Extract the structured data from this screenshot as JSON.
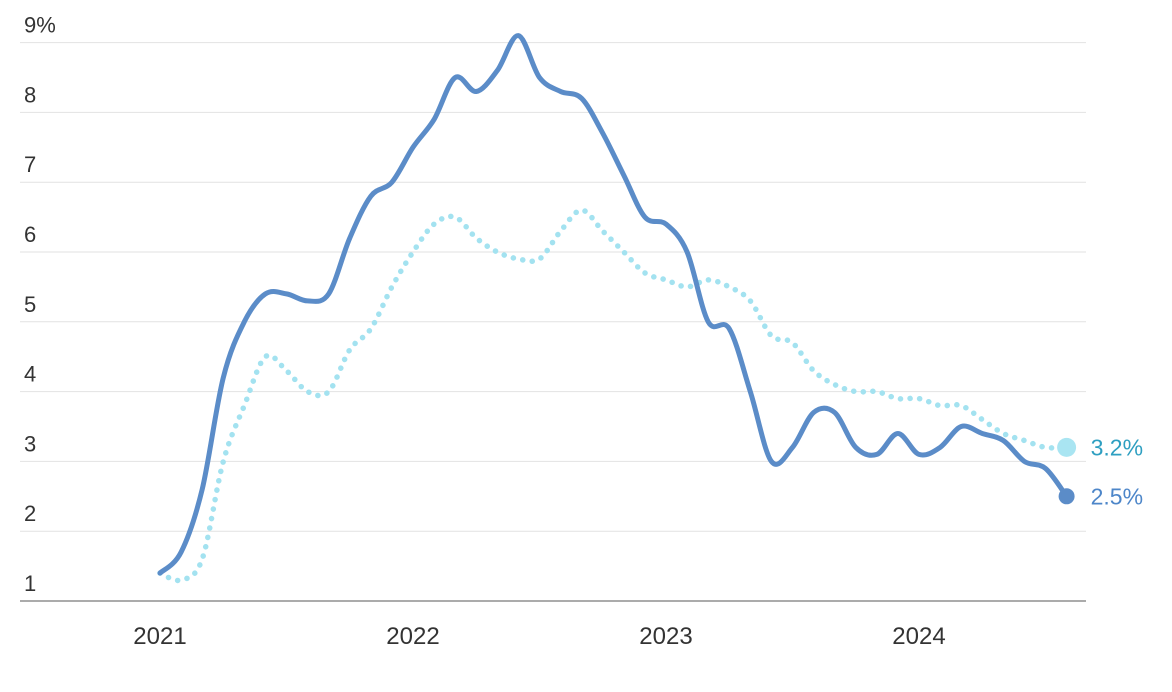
{
  "page": {
    "background": "#ffffff"
  },
  "chart_data": {
    "type": "line",
    "title": "",
    "xlabel": "",
    "ylabel": "",
    "x_unit": "month",
    "x_tick_labels": [
      "2021",
      "2022",
      "2023",
      "2024"
    ],
    "y_ticks": [
      9,
      8,
      7,
      6,
      5,
      4,
      3,
      2,
      1
    ],
    "y_tick_labels": [
      "9%",
      "8",
      "7",
      "6",
      "5",
      "4",
      "3",
      "2",
      "1"
    ],
    "y_range": [
      1,
      9
    ],
    "grid": "horizontal",
    "legend": "none",
    "grid_color": "#e2e2e2",
    "axis_color": "#8f8f8f",
    "tick_label_color": "#333333",
    "months": [
      "2021-01",
      "2021-02",
      "2021-03",
      "2021-04",
      "2021-05",
      "2021-06",
      "2021-07",
      "2021-08",
      "2021-09",
      "2021-10",
      "2021-11",
      "2021-12",
      "2022-01",
      "2022-02",
      "2022-03",
      "2022-04",
      "2022-05",
      "2022-06",
      "2022-07",
      "2022-08",
      "2022-09",
      "2022-10",
      "2022-11",
      "2022-12",
      "2023-01",
      "2023-02",
      "2023-03",
      "2023-04",
      "2023-05",
      "2023-06",
      "2023-07",
      "2023-08",
      "2023-09",
      "2023-10",
      "2023-11",
      "2023-12",
      "2024-01",
      "2024-02",
      "2024-03",
      "2024-04",
      "2024-05",
      "2024-06",
      "2024-07",
      "2024-08"
    ],
    "series": [
      {
        "name": "dotted-series",
        "line_style": "dotted",
        "color": "#a3e2f0",
        "marker_color": "#a9e5f2",
        "end_label": "3.2%",
        "end_label_color": "#2e9fc1",
        "end_value": 3.2,
        "values": [
          1.4,
          1.3,
          1.6,
          3.0,
          3.8,
          4.5,
          4.3,
          4.0,
          4.0,
          4.6,
          4.9,
          5.5,
          6.0,
          6.4,
          6.5,
          6.2,
          6.0,
          5.9,
          5.9,
          6.3,
          6.6,
          6.3,
          6.0,
          5.7,
          5.6,
          5.5,
          5.6,
          5.5,
          5.3,
          4.8,
          4.7,
          4.3,
          4.1,
          4.0,
          4.0,
          3.9,
          3.9,
          3.8,
          3.8,
          3.6,
          3.4,
          3.3,
          3.2,
          3.2
        ]
      },
      {
        "name": "solid-series",
        "line_style": "solid",
        "color": "#5b8cc8",
        "marker_color": "#5b8cc8",
        "end_label": "2.5%",
        "end_label_color": "#4d86c9",
        "end_value": 2.5,
        "values": [
          1.4,
          1.7,
          2.6,
          4.2,
          5.0,
          5.4,
          5.4,
          5.3,
          5.4,
          6.2,
          6.8,
          7.0,
          7.5,
          7.9,
          8.5,
          8.3,
          8.6,
          9.1,
          8.5,
          8.3,
          8.2,
          7.7,
          7.1,
          6.5,
          6.4,
          6.0,
          5.0,
          4.9,
          4.0,
          3.0,
          3.2,
          3.7,
          3.7,
          3.2,
          3.1,
          3.4,
          3.1,
          3.2,
          3.5,
          3.4,
          3.3,
          3.0,
          2.9,
          2.5
        ]
      }
    ]
  }
}
